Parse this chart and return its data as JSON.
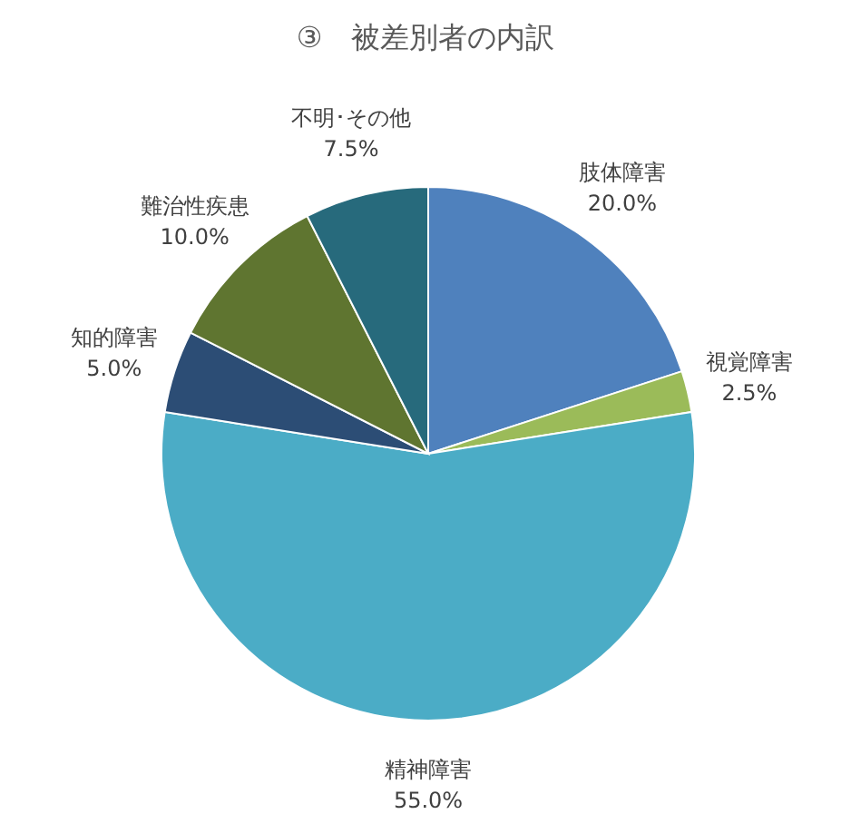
{
  "chart_data": {
    "type": "pie",
    "title": "③　被差別者の内訳",
    "categories": [
      "肢体障害",
      "視覚障害",
      "精神障害",
      "知的障害",
      "難治性疾患",
      "不明･その他"
    ],
    "values": [
      20,
      2.5,
      55,
      5,
      10,
      7.5
    ],
    "value_labels": [
      "20.0%",
      "2.5%",
      "55.0%",
      "5.0%",
      "10.0%",
      "7.5%"
    ],
    "colors": [
      "#4f81bd",
      "#9bbb59",
      "#4bacc6",
      "#2c4d75",
      "#5f7530",
      "#276a7c"
    ]
  }
}
